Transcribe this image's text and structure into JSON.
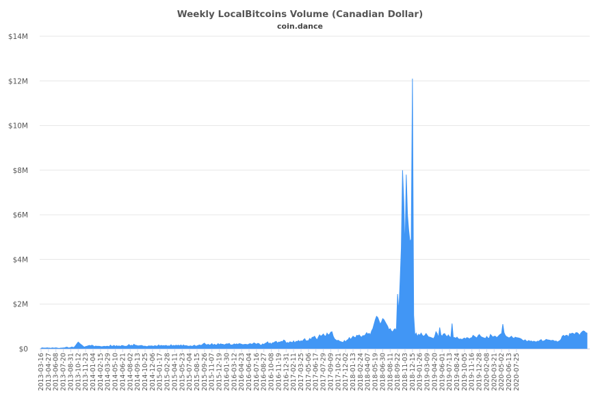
{
  "chart_data": {
    "type": "area",
    "title": "Weekly LocalBitcoins Volume (Canadian Dollar)",
    "subtitle": "coin.dance",
    "xlabel": "",
    "ylabel": "",
    "ylim": [
      0,
      14000000
    ],
    "y_ticks": [
      0,
      2000000,
      4000000,
      6000000,
      8000000,
      10000000,
      12000000,
      14000000
    ],
    "y_tick_labels": [
      "$0",
      "$2M",
      "$4M",
      "$6M",
      "$8M",
      "$10M",
      "$12M",
      "$14M"
    ],
    "x_tick_labels": [
      "2013-03-16",
      "2013-04-27",
      "2013-06-08",
      "2013-07-20",
      "2013-08-31",
      "2013-10-12",
      "2013-11-23",
      "2014-01-04",
      "2014-02-15",
      "2014-03-29",
      "2014-05-10",
      "2014-06-21",
      "2014-08-02",
      "2014-09-13",
      "2014-10-25",
      "2014-12-06",
      "2015-01-17",
      "2015-02-28",
      "2015-04-11",
      "2015-05-23",
      "2015-07-04",
      "2015-08-15",
      "2015-09-26",
      "2015-11-07",
      "2015-12-19",
      "2016-01-30",
      "2016-03-12",
      "2016-04-23",
      "2016-06-04",
      "2016-07-16",
      "2016-08-27",
      "2016-10-08",
      "2016-11-19",
      "2016-12-31",
      "2017-02-11",
      "2017-03-25",
      "2017-05-06",
      "2017-06-17",
      "2017-07-29",
      "2017-09-09",
      "2017-10-21",
      "2017-12-02",
      "2018-01-13",
      "2018-02-24",
      "2018-04-07",
      "2018-05-19",
      "2018-06-30",
      "2018-08-11",
      "2018-09-22",
      "2018-11-03",
      "2018-12-15",
      "2019-01-26",
      "2019-03-09",
      "2019-04-20",
      "2019-06-01",
      "2019-07-13",
      "2019-08-24",
      "2019-10-05",
      "2019-11-16",
      "2019-12-28",
      "2020-02-08",
      "2020-03-21",
      "2020-05-02",
      "2020-06-13",
      "2020-07-25"
    ],
    "grid": true,
    "legend": "none",
    "series_color": "#4196f5",
    "series": [
      {
        "x_start": "2013-03-16",
        "x_step_weeks": 1,
        "values": [
          20000,
          40000,
          30000,
          30000,
          30000,
          40000,
          30000,
          30000,
          20000,
          40000,
          30000,
          30000,
          40000,
          30000,
          20000,
          20000,
          30000,
          30000,
          40000,
          40000,
          60000,
          70000,
          40000,
          40000,
          60000,
          80000,
          50000,
          80000,
          150000,
          230000,
          300000,
          250000,
          200000,
          160000,
          110000,
          70000,
          100000,
          110000,
          130000,
          150000,
          130000,
          160000,
          140000,
          90000,
          120000,
          110000,
          110000,
          110000,
          100000,
          90000,
          100000,
          110000,
          100000,
          110000,
          110000,
          90000,
          160000,
          110000,
          120000,
          150000,
          100000,
          140000,
          110000,
          130000,
          100000,
          140000,
          140000,
          120000,
          110000,
          110000,
          140000,
          190000,
          130000,
          160000,
          130000,
          200000,
          160000,
          150000,
          130000,
          130000,
          140000,
          150000,
          130000,
          110000,
          120000,
          100000,
          100000,
          130000,
          120000,
          130000,
          120000,
          110000,
          140000,
          120000,
          120000,
          170000,
          120000,
          150000,
          130000,
          140000,
          130000,
          150000,
          120000,
          130000,
          120000,
          180000,
          120000,
          150000,
          130000,
          160000,
          140000,
          160000,
          130000,
          170000,
          120000,
          170000,
          130000,
          140000,
          130000,
          110000,
          120000,
          130000,
          100000,
          140000,
          160000,
          110000,
          130000,
          150000,
          170000,
          150000,
          170000,
          220000,
          250000,
          190000,
          170000,
          200000,
          160000,
          180000,
          230000,
          160000,
          200000,
          170000,
          170000,
          230000,
          180000,
          220000,
          200000,
          200000,
          170000,
          200000,
          220000,
          210000,
          240000,
          170000,
          170000,
          180000,
          220000,
          190000,
          220000,
          190000,
          230000,
          220000,
          200000,
          180000,
          190000,
          200000,
          190000,
          180000,
          210000,
          230000,
          200000,
          220000,
          260000,
          230000,
          200000,
          240000,
          230000,
          170000,
          160000,
          220000,
          190000,
          240000,
          260000,
          310000,
          220000,
          260000,
          200000,
          270000,
          270000,
          310000,
          330000,
          250000,
          300000,
          290000,
          330000,
          310000,
          390000,
          360000,
          250000,
          280000,
          250000,
          310000,
          300000,
          270000,
          350000,
          260000,
          330000,
          320000,
          370000,
          310000,
          360000,
          330000,
          400000,
          450000,
          350000,
          360000,
          360000,
          460000,
          410000,
          510000,
          520000,
          560000,
          460000,
          400000,
          520000,
          620000,
          560000,
          600000,
          660000,
          580000,
          560000,
          700000,
          620000,
          650000,
          740000,
          760000,
          560000,
          450000,
          400000,
          360000,
          380000,
          340000,
          320000,
          300000,
          280000,
          370000,
          310000,
          380000,
          410000,
          500000,
          420000,
          480000,
          560000,
          520000,
          490000,
          600000,
          580000,
          620000,
          550000,
          520000,
          590000,
          580000,
          630000,
          720000,
          650000,
          690000,
          620000,
          800000,
          900000,
          1100000,
          1300000,
          1450000,
          1400000,
          1250000,
          1100000,
          1200000,
          1350000,
          1300000,
          1200000,
          1100000,
          1000000,
          850000,
          900000,
          800000,
          750000,
          850000,
          900000,
          800000,
          2450000,
          1650000,
          3000000,
          4500000,
          8000000,
          6600000,
          4400000,
          7800000,
          6000000,
          5300000,
          4800000,
          4900000,
          12100000,
          1500000,
          600000,
          700000,
          550000,
          650000,
          600000,
          700000,
          600000,
          560000,
          600000,
          680000,
          600000,
          530000,
          520000,
          500000,
          480000,
          450000,
          550000,
          760000,
          680000,
          500000,
          950000,
          620000,
          560000,
          660000,
          680000,
          590000,
          540000,
          620000,
          540000,
          500000,
          1130000,
          500000,
          500000,
          470000,
          520000,
          450000,
          430000,
          440000,
          410000,
          450000,
          480000,
          440000,
          500000,
          480000,
          440000,
          480000,
          500000,
          600000,
          560000,
          520000,
          480000,
          580000,
          640000,
          560000,
          520000,
          500000,
          480000,
          460000,
          550000,
          480000,
          470000,
          640000,
          580000,
          520000,
          560000,
          560000,
          500000,
          540000,
          600000,
          650000,
          680000,
          1100000,
          720000,
          600000,
          540000,
          520000,
          480000,
          520000,
          560000,
          490000,
          460000,
          520000,
          500000,
          490000,
          480000,
          460000,
          430000,
          380000,
          360000,
          400000,
          340000,
          330000,
          370000,
          330000,
          350000,
          310000,
          340000,
          320000,
          300000,
          340000,
          330000,
          380000,
          410000,
          330000,
          350000,
          370000,
          420000,
          400000,
          390000,
          380000,
          360000,
          380000,
          370000,
          330000,
          350000,
          300000,
          330000,
          360000,
          420000,
          560000,
          600000,
          550000,
          600000,
          600000,
          520000,
          680000,
          660000,
          700000,
          680000,
          640000,
          720000,
          720000,
          680000,
          600000,
          700000,
          760000,
          800000,
          780000,
          720000,
          700000
        ]
      }
    ]
  }
}
